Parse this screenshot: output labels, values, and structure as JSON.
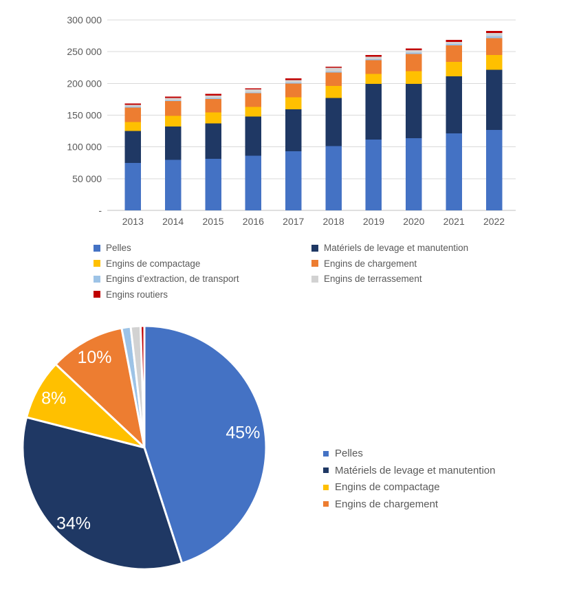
{
  "palette": {
    "background": "#FFFFFF",
    "axis_text": "#595959",
    "legend_text": "#595959",
    "gridline": "#D9D9D9",
    "axis_line": "#BFBFBF",
    "pie_label_text": "#FFFFFF",
    "pie_border": "#FFFFFF"
  },
  "chart_data": [
    {
      "type": "bar",
      "stacked": true,
      "title": "",
      "xlabel": "",
      "ylabel": "",
      "categories": [
        "2013",
        "2014",
        "2015",
        "2016",
        "2017",
        "2018",
        "2019",
        "2020",
        "2021",
        "2022"
      ],
      "series": [
        {
          "name": "Pelles",
          "color": "#4472C4",
          "values": [
            74500,
            79500,
            81000,
            86000,
            93000,
            101000,
            111500,
            113500,
            121500,
            126500
          ]
        },
        {
          "name": "Matériels de levage et manutention",
          "color": "#1F3864",
          "values": [
            50500,
            52500,
            56000,
            62000,
            66000,
            76000,
            88000,
            86000,
            89500,
            95000
          ]
        },
        {
          "name": "Engins de compactage",
          "color": "#FFC000",
          "values": [
            14000,
            17000,
            17500,
            15000,
            19000,
            19000,
            15500,
            20000,
            23000,
            23000
          ]
        },
        {
          "name": "Engins de chargement",
          "color": "#ED7D31",
          "values": [
            23000,
            23000,
            21000,
            21500,
            22000,
            21000,
            21500,
            27000,
            26000,
            27000
          ]
        },
        {
          "name": "Engins d’extraction, de transport",
          "color": "#9DC3E6",
          "values": [
            1500,
            1500,
            1500,
            1500,
            1500,
            2000,
            2000,
            2000,
            2000,
            3000
          ]
        },
        {
          "name": "Engins de terrassement",
          "color": "#D2D2D2",
          "values": [
            3000,
            3500,
            4000,
            4500,
            4000,
            5500,
            3500,
            4000,
            3500,
            5000
          ]
        },
        {
          "name": "Engins routiers",
          "color": "#C00000",
          "values": [
            2000,
            2500,
            2500,
            2000,
            2500,
            2000,
            2500,
            2500,
            3000,
            3000
          ]
        }
      ],
      "totals": [
        168500,
        179500,
        183500,
        192500,
        208000,
        226500,
        244500,
        255000,
        268500,
        282500
      ],
      "ylim": [
        0,
        300000
      ],
      "ytick_step": 50000,
      "ytick_labels": [
        "-",
        "50 000",
        "100 000",
        "150 000",
        "200 000",
        "250 000",
        "300 000"
      ],
      "grid": true,
      "legend_position": "bottom"
    },
    {
      "type": "pie",
      "title": "",
      "start_angle_deg": 0,
      "direction": "clockwise",
      "legend_position": "right",
      "slices": [
        {
          "name": "Pelles",
          "color": "#4472C4",
          "pct": 45,
          "label": "45%",
          "label_r": 0.82
        },
        {
          "name": "Matériels de levage et manutention",
          "color": "#1F3864",
          "pct": 34,
          "label": "34%",
          "label_r": 0.85
        },
        {
          "name": "Engins de compactage",
          "color": "#FFC000",
          "pct": 8,
          "label": "8%",
          "label_r": 0.85
        },
        {
          "name": "Engins de chargement",
          "color": "#ED7D31",
          "pct": 10,
          "label": "10%",
          "label_r": 0.85
        },
        {
          "name": "Engins d’extraction, de transport",
          "color": "#9DC3E6",
          "pct": 1.2,
          "label": ""
        },
        {
          "name": "Engins de terrassement",
          "color": "#D2D2D2",
          "pct": 1.3,
          "label": ""
        },
        {
          "name": "Engins routiers",
          "color": "#C00000",
          "pct": 0.5,
          "label": ""
        }
      ]
    }
  ]
}
